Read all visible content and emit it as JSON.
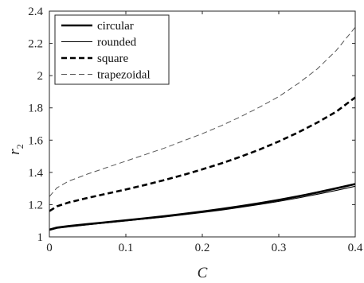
{
  "chart_data": {
    "type": "line",
    "xlabel": "C",
    "ylabel_main": "r",
    "ylabel_sub": "2",
    "xlim": [
      0,
      0.4
    ],
    "ylim": [
      1,
      2.4
    ],
    "xticks": [
      0,
      0.1,
      0.2,
      0.3,
      0.4
    ],
    "xtick_labels": [
      "0",
      "0.1",
      "0.2",
      "0.3",
      "0.4"
    ],
    "yticks": [
      1,
      1.2,
      1.4,
      1.6,
      1.8,
      2,
      2.2,
      2.4
    ],
    "ytick_labels": [
      "1",
      "1.2",
      "1.4",
      "1.6",
      "1.8",
      "2",
      "2.2",
      "2.4"
    ],
    "grid": false,
    "legend_position": "top-left",
    "x": [
      0,
      0.01,
      0.025,
      0.05,
      0.075,
      0.1,
      0.125,
      0.15,
      0.175,
      0.2,
      0.225,
      0.25,
      0.275,
      0.3,
      0.325,
      0.35,
      0.375,
      0.4
    ],
    "series": [
      {
        "name": "circular",
        "style": "solid-thick",
        "color": "#000000",
        "values": [
          1.045,
          1.058,
          1.067,
          1.079,
          1.091,
          1.103,
          1.115,
          1.128,
          1.142,
          1.157,
          1.173,
          1.19,
          1.209,
          1.229,
          1.251,
          1.275,
          1.301,
          1.328
        ]
      },
      {
        "name": "rounded",
        "style": "solid-thin",
        "color": "#000000",
        "values": [
          1.04,
          1.053,
          1.062,
          1.075,
          1.087,
          1.099,
          1.111,
          1.123,
          1.137,
          1.151,
          1.166,
          1.183,
          1.201,
          1.22,
          1.241,
          1.264,
          1.288,
          1.314
        ]
      },
      {
        "name": "square",
        "style": "dashed-thick",
        "color": "#000000",
        "values": [
          1.16,
          1.19,
          1.213,
          1.242,
          1.268,
          1.294,
          1.322,
          1.352,
          1.384,
          1.419,
          1.456,
          1.497,
          1.542,
          1.592,
          1.647,
          1.708,
          1.776,
          1.865
        ]
      },
      {
        "name": "trapezoidal",
        "style": "dashed-thin",
        "color": "#555555",
        "values": [
          1.25,
          1.305,
          1.345,
          1.39,
          1.43,
          1.47,
          1.51,
          1.55,
          1.595,
          1.64,
          1.69,
          1.745,
          1.805,
          1.87,
          1.95,
          2.04,
          2.155,
          2.3
        ]
      }
    ]
  }
}
